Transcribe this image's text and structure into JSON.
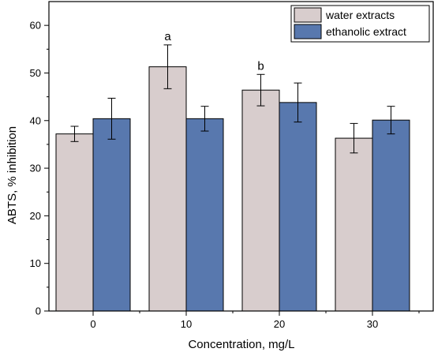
{
  "chart_data": {
    "type": "bar",
    "title": "",
    "xlabel": "Concentration, mg/L",
    "ylabel": "ABTS, % inhibition",
    "categories": [
      "0",
      "10",
      "20",
      "30"
    ],
    "ylim": [
      0,
      65
    ],
    "yticks": [
      0,
      10,
      20,
      30,
      40,
      50,
      60
    ],
    "grid": false,
    "legend_position": "top-right",
    "series": [
      {
        "name": "water extracts",
        "color": "#d8cdcd",
        "values": [
          37.2,
          51.3,
          46.4,
          36.3
        ],
        "errors": [
          1.6,
          4.6,
          3.3,
          3.1
        ]
      },
      {
        "name": "ethanolic extract",
        "color": "#5878ae",
        "values": [
          40.4,
          40.4,
          43.8,
          40.1
        ],
        "errors": [
          4.3,
          2.6,
          4.1,
          2.9
        ]
      }
    ],
    "annotations": [
      {
        "category": "10",
        "series": 0,
        "text": "a"
      },
      {
        "category": "20",
        "series": 0,
        "text": "b"
      }
    ]
  }
}
